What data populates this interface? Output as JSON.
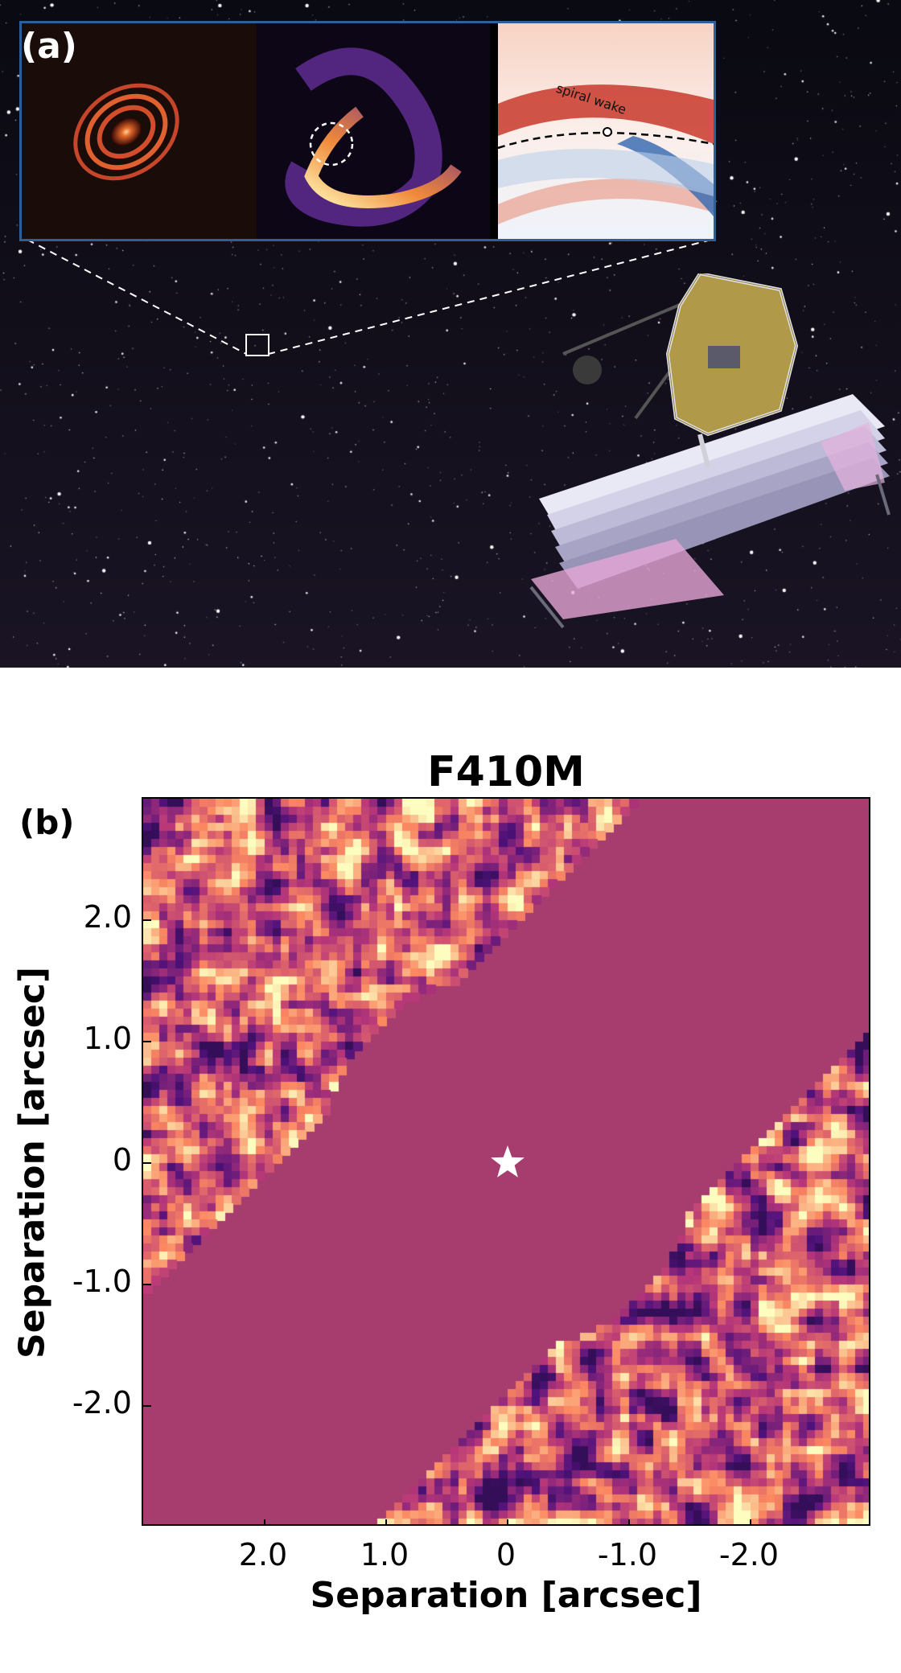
{
  "panel_a": {
    "label": "(a)",
    "inset": {
      "annotation": "spiral wake"
    }
  },
  "panel_b": {
    "label": "(b)"
  },
  "chart_data": {
    "type": "heatmap",
    "title": "F410M",
    "xlabel": "Separation [arcsec]",
    "ylabel": "Separation [arcsec]",
    "xlim": [
      3.0,
      -3.0
    ],
    "ylim": [
      -3.0,
      3.0
    ],
    "x_ticks": [
      {
        "value": 2.0,
        "label": "2.0"
      },
      {
        "value": 1.0,
        "label": "1.0"
      },
      {
        "value": 0,
        "label": "0"
      },
      {
        "value": -1.0,
        "label": "-1.0"
      },
      {
        "value": -2.0,
        "label": "-2.0"
      }
    ],
    "y_ticks": [
      {
        "value": 2.0,
        "label": "2.0"
      },
      {
        "value": 1.0,
        "label": "1.0"
      },
      {
        "value": 0,
        "label": "0"
      },
      {
        "value": -1.0,
        "label": "-1.0"
      },
      {
        "value": -2.0,
        "label": "-2.0"
      }
    ],
    "star_marker": {
      "x": 0,
      "y": 0
    },
    "colormap": "magma",
    "masked_color": "#a63d6e"
  }
}
